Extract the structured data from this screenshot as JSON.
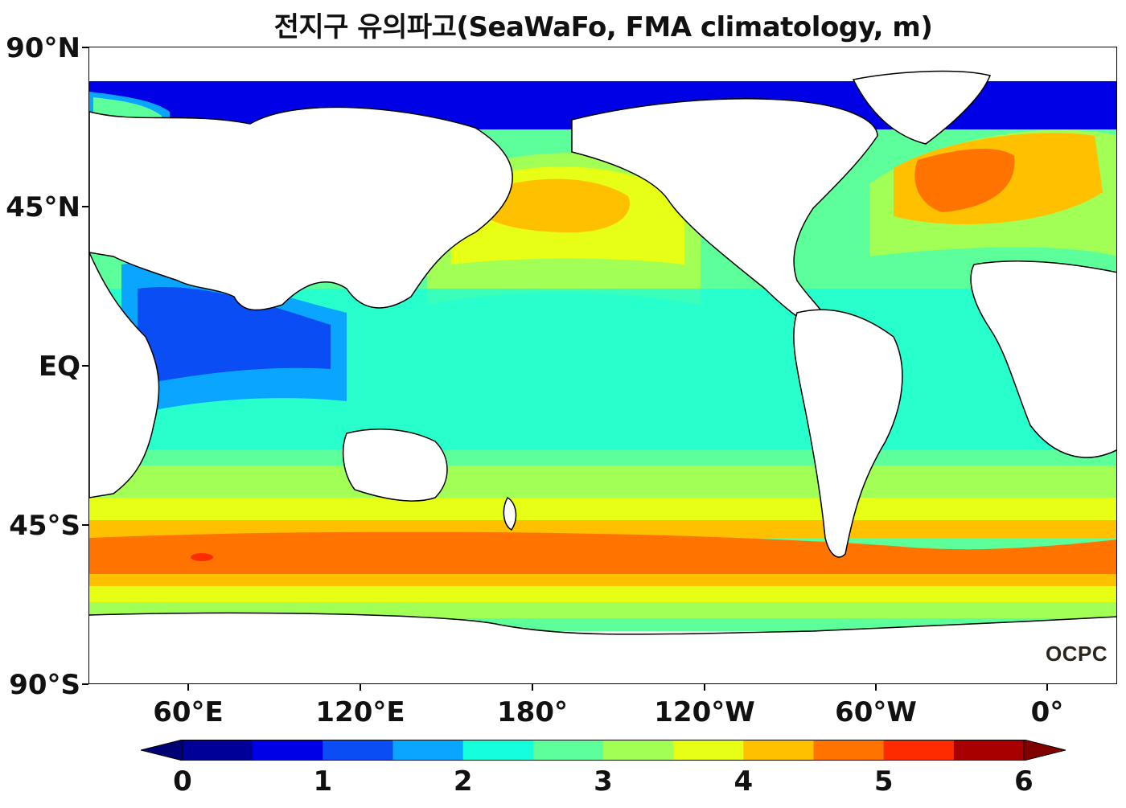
{
  "title": "전지구 유의파고(SeaWaFo, FMA climatology, m)",
  "yaxis": {
    "labels": [
      "90°N",
      "45°N",
      "EQ",
      "45°S",
      "90°S"
    ]
  },
  "xaxis": {
    "labels": [
      "60°E",
      "120°E",
      "180°",
      "120°W",
      "60°W",
      "0°"
    ]
  },
  "colorbar": {
    "tick_labels": [
      "0",
      "1",
      "2",
      "3",
      "4",
      "5",
      "6"
    ],
    "colors": [
      "#000099",
      "#0000e6",
      "#0a4df5",
      "#0aa5ff",
      "#15ffdc",
      "#5cff9a",
      "#a2ff55",
      "#e6ff14",
      "#ffc000",
      "#ff7400",
      "#ff2b00",
      "#a80000"
    ],
    "under_color": "#000072",
    "over_color": "#800000"
  },
  "logo_text": "OCPC",
  "colors": {
    "land": "#ffffff",
    "coastline": "#000000"
  }
}
